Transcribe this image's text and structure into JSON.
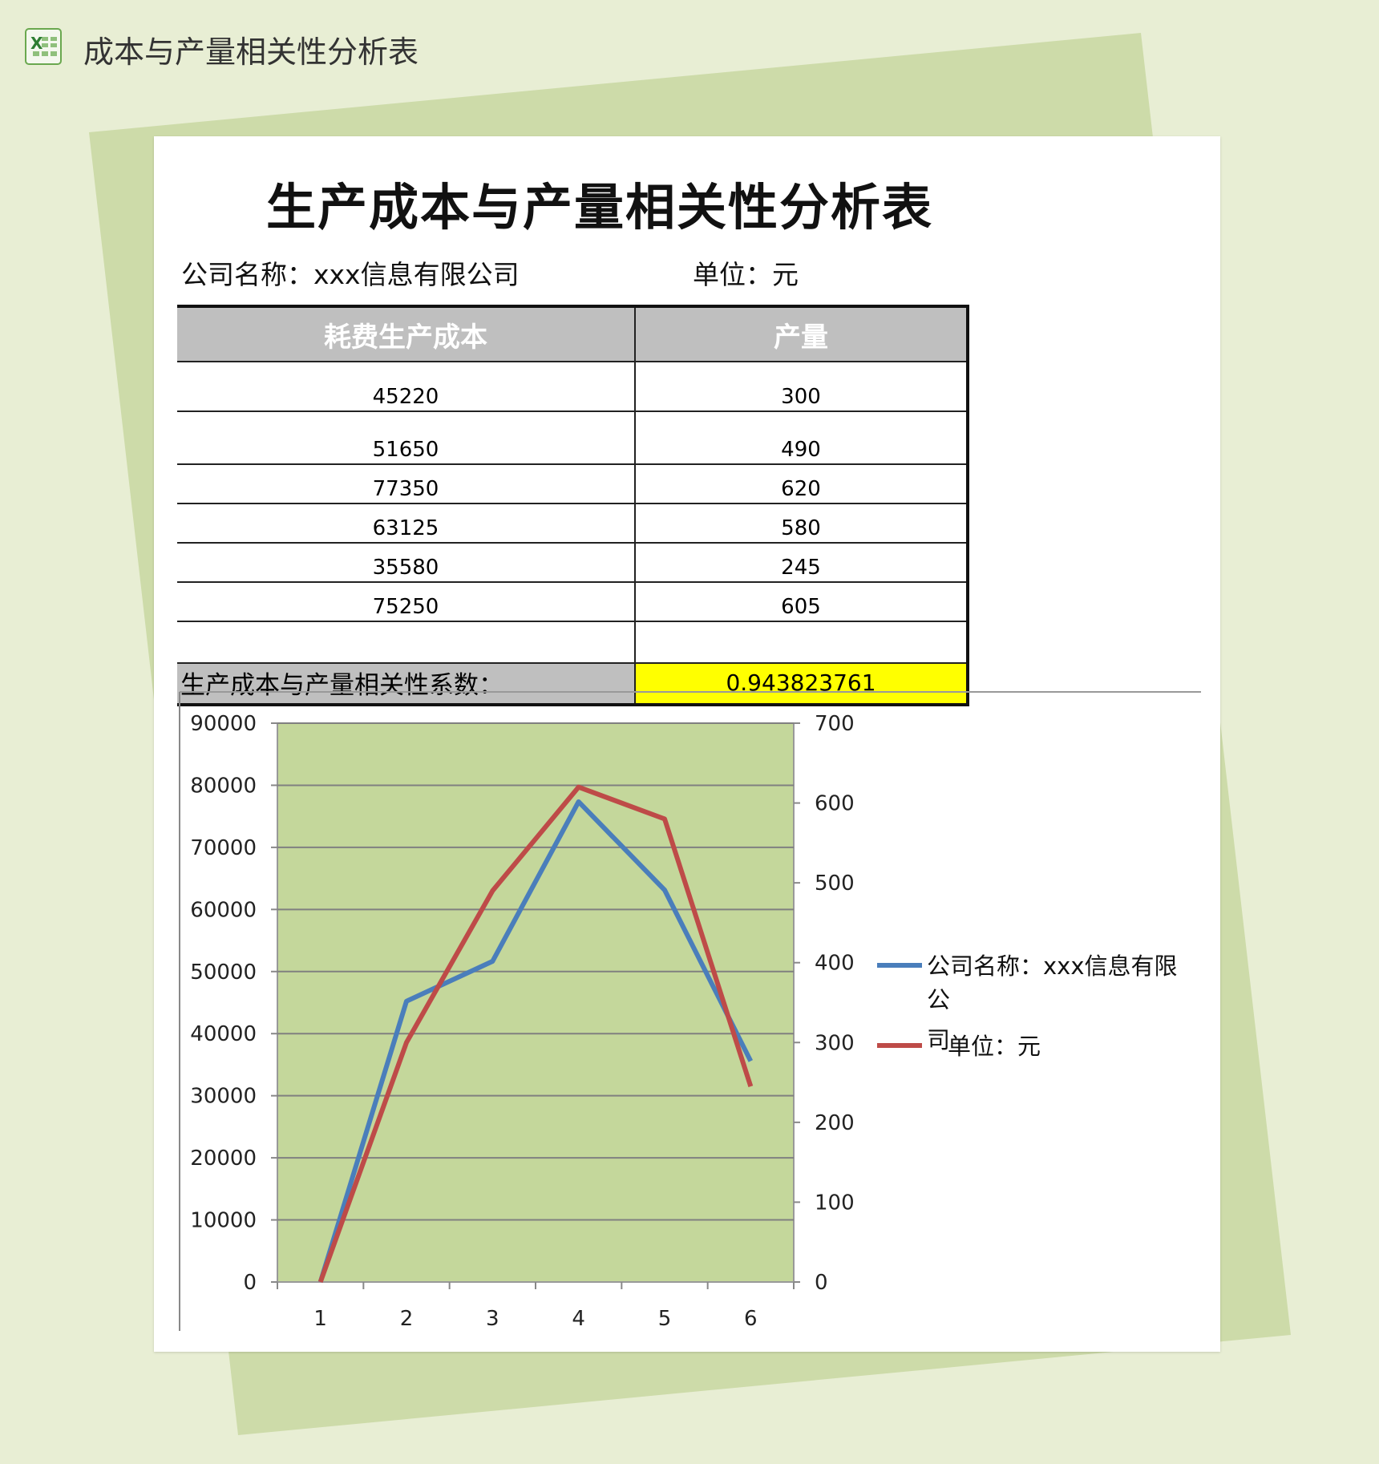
{
  "app": {
    "title": "成本与产量相关性分析表",
    "icon": "excel-icon"
  },
  "document": {
    "title": "生产成本与产量相关性分析表",
    "company_label": "公司名称：xxx信息有限公司",
    "unit_label": "单位：元"
  },
  "table": {
    "headers": [
      "耗费生产成本",
      "产量"
    ],
    "rows": [
      [
        "45220",
        "300"
      ],
      [
        "51650",
        "490"
      ],
      [
        "77350",
        "620"
      ],
      [
        "63125",
        "580"
      ],
      [
        "35580",
        "245"
      ],
      [
        "75250",
        "605"
      ],
      [
        "",
        ""
      ]
    ],
    "correlation_label": "生产成本与产量相关性系数：",
    "correlation_value": "0.943823761"
  },
  "colors": {
    "background": "#e8eed4",
    "panel": "#cddba9",
    "plot_area": "#c4d79b",
    "series_blue": "#4a7ebb",
    "series_red": "#be4b48",
    "highlight": "#ffff00"
  },
  "chart_data": {
    "type": "line",
    "categories": [
      "1",
      "2",
      "3",
      "4",
      "5",
      "6"
    ],
    "series": [
      {
        "name": "公司名称：xxx信息有限公司",
        "axis": "left",
        "color": "#4a7ebb",
        "values": [
          0,
          45220,
          51650,
          77350,
          63125,
          35580
        ]
      },
      {
        "name": "单位：元",
        "axis": "right",
        "color": "#be4b48",
        "values": [
          0,
          300,
          490,
          620,
          580,
          245
        ]
      }
    ],
    "y_left": {
      "range": [
        0,
        90000
      ],
      "ticks": [
        "0",
        "10000",
        "20000",
        "30000",
        "40000",
        "50000",
        "60000",
        "70000",
        "80000",
        "90000"
      ]
    },
    "y_right": {
      "range": [
        0,
        700
      ],
      "ticks": [
        "0",
        "100",
        "200",
        "300",
        "400",
        "500",
        "600",
        "700"
      ]
    },
    "grid": true,
    "legend": "right",
    "legend_lines": [
      [
        "公司名称：xxx信息有限公",
        "司"
      ],
      [
        "单位：元"
      ]
    ]
  }
}
